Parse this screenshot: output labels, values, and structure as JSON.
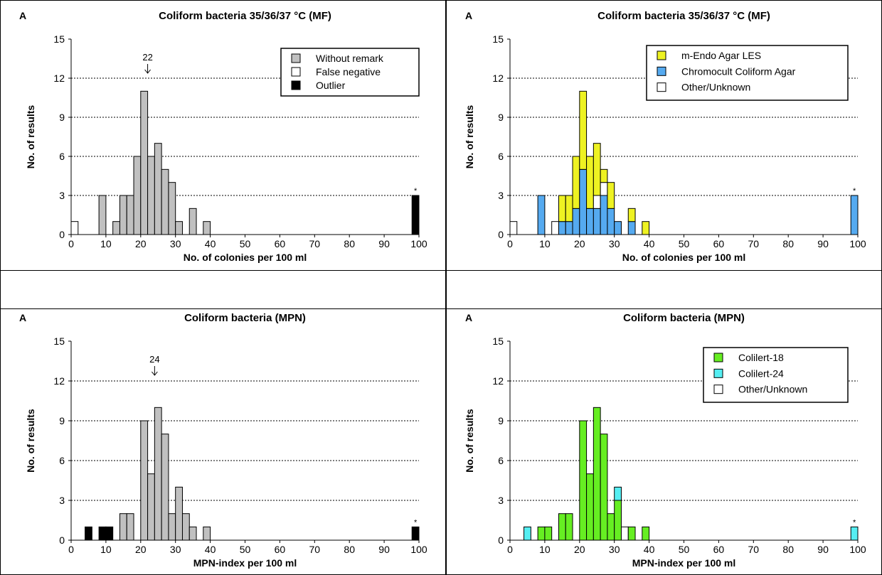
{
  "panels": [
    {
      "panel_label": "A",
      "title": "Coliform bacteria 35/36/37 °C (MF)",
      "xlabel": "No. of colonies per 100 ml",
      "ylabel": "No. of results",
      "marker": {
        "value": "22",
        "x": 22
      },
      "outlier_star": "*",
      "legend": [
        {
          "label": "Without remark",
          "color": "#c0c0c0"
        },
        {
          "label": "False negative",
          "color": "#ffffff"
        },
        {
          "label": "Outlier",
          "color": "#000000"
        }
      ]
    },
    {
      "panel_label": "A",
      "title": "Coliform bacteria 35/36/37 °C (MF)",
      "xlabel": "No. of colonies per 100 ml",
      "ylabel": "No. of results",
      "outlier_star": "*",
      "legend": [
        {
          "label": "m-Endo Agar LES",
          "color": "#eef222"
        },
        {
          "label": "Chromocult Coliform Agar",
          "color": "#55aaf0"
        },
        {
          "label": "Other/Unknown",
          "color": "#ffffff"
        }
      ]
    },
    {
      "panel_label": "A",
      "title": "Coliform bacteria (MPN)",
      "xlabel": "MPN-index per 100 ml",
      "ylabel": "No. of results",
      "marker": {
        "value": "24",
        "x": 24
      },
      "outlier_star": "*",
      "legend": []
    },
    {
      "panel_label": "A",
      "title": "Coliform bacteria (MPN)",
      "xlabel": "MPN-index per 100 ml",
      "ylabel": "No. of results",
      "outlier_star": "*",
      "legend": [
        {
          "label": "Colilert-18",
          "color": "#66ee22"
        },
        {
          "label": "Colilert-24",
          "color": "#55eef2"
        },
        {
          "label": "Other/Unknown",
          "color": "#ffffff"
        }
      ]
    }
  ],
  "chart_data": [
    {
      "type": "bar",
      "stacked": true,
      "bin_width": 2,
      "xlim": [
        0,
        100
      ],
      "ylim": [
        0,
        15
      ],
      "xticks": [
        0,
        10,
        20,
        30,
        40,
        50,
        60,
        70,
        80,
        90,
        100
      ],
      "yticks": [
        0,
        3,
        6,
        9,
        12,
        15
      ],
      "grid": "horizontal dotted at 3, 6, 9, 12",
      "legend_position": "top-right",
      "bins": [
        0,
        8,
        12,
        14,
        16,
        18,
        20,
        22,
        24,
        26,
        28,
        30,
        34,
        38,
        98
      ],
      "series": [
        {
          "name": "Without remark",
          "color": "#c0c0c0",
          "values": [
            0,
            3,
            1,
            3,
            3,
            6,
            11,
            6,
            7,
            5,
            4,
            1,
            2,
            1,
            0
          ]
        },
        {
          "name": "False negative",
          "color": "#ffffff",
          "values": [
            1,
            0,
            0,
            0,
            0,
            0,
            0,
            0,
            0,
            0,
            0,
            0,
            0,
            0,
            0
          ]
        },
        {
          "name": "Outlier",
          "color": "#000000",
          "values": [
            0,
            0,
            0,
            0,
            0,
            0,
            0,
            0,
            0,
            0,
            0,
            0,
            0,
            0,
            3
          ]
        }
      ]
    },
    {
      "type": "bar",
      "stacked": true,
      "bin_width": 2,
      "xlim": [
        0,
        100
      ],
      "ylim": [
        0,
        15
      ],
      "xticks": [
        0,
        10,
        20,
        30,
        40,
        50,
        60,
        70,
        80,
        90,
        100
      ],
      "yticks": [
        0,
        3,
        6,
        9,
        12,
        15
      ],
      "grid": "horizontal dotted at 3, 6, 9, 12",
      "legend_position": "top-right",
      "bins": [
        0,
        8,
        12,
        14,
        16,
        18,
        20,
        22,
        24,
        26,
        28,
        30,
        34,
        38,
        98
      ],
      "series": [
        {
          "name": "Chromocult Coliform Agar",
          "color": "#55aaf0",
          "values": [
            0,
            3,
            0,
            1,
            1,
            2,
            5,
            2,
            2,
            3,
            2,
            1,
            1,
            0,
            3
          ]
        },
        {
          "name": "Other/Unknown",
          "color": "#ffffff",
          "values": [
            1,
            0,
            1,
            0,
            0,
            0,
            0,
            0,
            1,
            1,
            0,
            0,
            0,
            0,
            0
          ]
        },
        {
          "name": "m-Endo Agar LES",
          "color": "#eef222",
          "values": [
            0,
            0,
            0,
            2,
            2,
            4,
            6,
            4,
            4,
            1,
            2,
            0,
            1,
            1,
            0
          ]
        }
      ]
    },
    {
      "type": "bar",
      "stacked": true,
      "bin_width": 2,
      "xlim": [
        0,
        100
      ],
      "ylim": [
        0,
        15
      ],
      "xticks": [
        0,
        10,
        20,
        30,
        40,
        50,
        60,
        70,
        80,
        90,
        100
      ],
      "yticks": [
        0,
        3,
        6,
        9,
        12,
        15
      ],
      "grid": "horizontal dotted at 3, 6, 9, 12",
      "bins": [
        4,
        8,
        10,
        14,
        16,
        20,
        22,
        24,
        26,
        28,
        30,
        32,
        34,
        38,
        98
      ],
      "series": [
        {
          "name": "Without remark",
          "color": "#c0c0c0",
          "values": [
            0,
            0,
            0,
            2,
            2,
            9,
            5,
            10,
            8,
            2,
            4,
            2,
            1,
            1,
            0
          ]
        },
        {
          "name": "Outlier",
          "color": "#000000",
          "values": [
            1,
            1,
            1,
            0,
            0,
            0,
            0,
            0,
            0,
            0,
            0,
            0,
            0,
            0,
            1
          ]
        }
      ]
    },
    {
      "type": "bar",
      "stacked": true,
      "bin_width": 2,
      "xlim": [
        0,
        100
      ],
      "ylim": [
        0,
        15
      ],
      "xticks": [
        0,
        10,
        20,
        30,
        40,
        50,
        60,
        70,
        80,
        90,
        100
      ],
      "yticks": [
        0,
        3,
        6,
        9,
        12,
        15
      ],
      "grid": "horizontal dotted at 3, 6, 9, 12",
      "legend_position": "top-right",
      "bins": [
        4,
        8,
        10,
        14,
        16,
        20,
        22,
        24,
        26,
        28,
        30,
        32,
        34,
        38,
        98
      ],
      "series": [
        {
          "name": "Colilert-18",
          "color": "#66ee22",
          "values": [
            0,
            1,
            1,
            2,
            2,
            9,
            5,
            10,
            8,
            2,
            3,
            0,
            1,
            1,
            0
          ]
        },
        {
          "name": "Colilert-24",
          "color": "#55eef2",
          "values": [
            1,
            0,
            0,
            0,
            0,
            0,
            0,
            0,
            0,
            0,
            1,
            0,
            0,
            0,
            1
          ]
        },
        {
          "name": "Other/Unknown",
          "color": "#ffffff",
          "values": [
            0,
            0,
            0,
            0,
            0,
            0,
            0,
            0,
            0,
            0,
            0,
            1,
            0,
            0,
            0
          ]
        }
      ]
    }
  ]
}
